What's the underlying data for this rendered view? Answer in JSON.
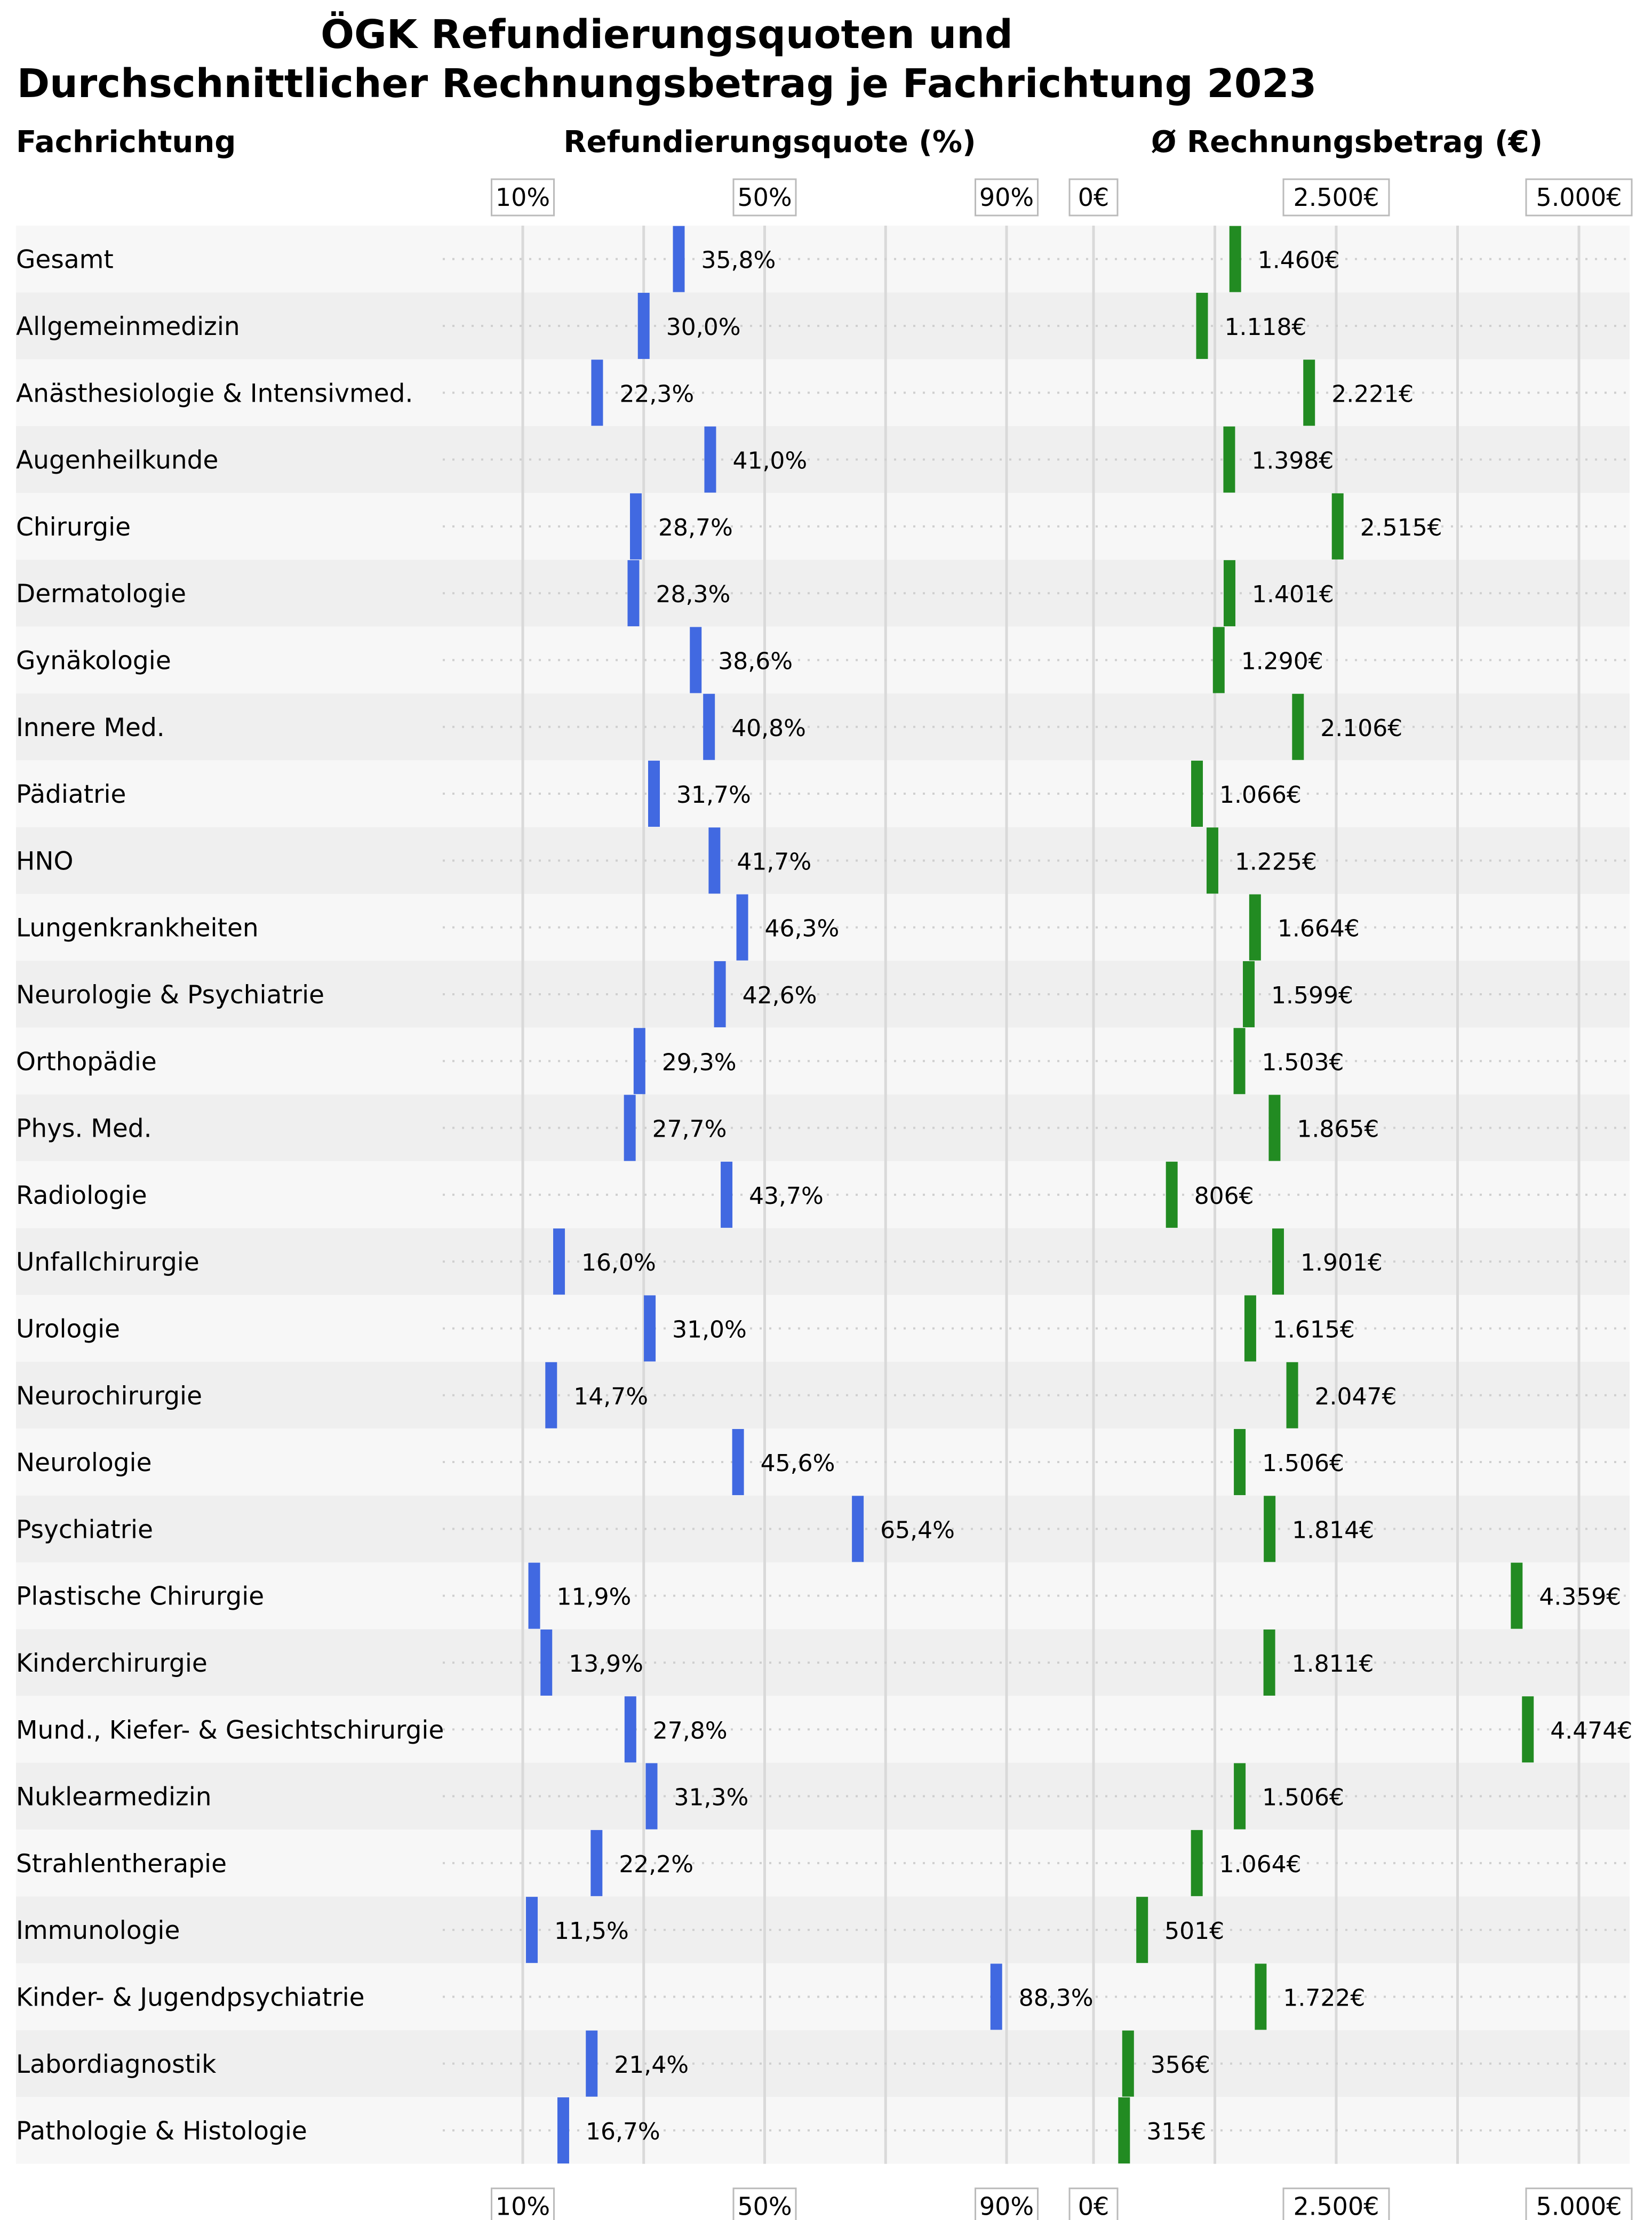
{
  "chart_data": {
    "type": "bar",
    "title_lines": [
      "ÖGK Refundierungsquoten und",
      "Durchschnittlicher Rechnungsbetrag je Fachrichtung 2023"
    ],
    "column_headers": {
      "category": "Fachrichtung",
      "quote": "Refundierungsquote (%)",
      "betrag": "Ø Rechnungsbetrag (€)"
    },
    "quote_axis": {
      "range": [
        10,
        100
      ],
      "ticks": [
        10,
        50,
        90
      ],
      "tick_labels": [
        "10%",
        "50%",
        "90%"
      ],
      "gridlines": [
        10,
        30,
        50,
        70,
        90
      ]
    },
    "betrag_axis": {
      "range": [
        0,
        5000
      ],
      "ticks": [
        0,
        2500,
        5000
      ],
      "tick_labels": [
        "0€",
        "2.500€",
        "5.000€"
      ],
      "gridlines": [
        0,
        1250,
        2500,
        3750,
        5000
      ]
    },
    "colors": {
      "quote": "#4169e1",
      "betrag": "#228b22",
      "band_light": "#f7f7f7",
      "band_dark": "#efefef",
      "grid": "#d9d9d9"
    },
    "categories": [
      "Gesamt",
      "Allgemeinmedizin",
      "Anästhesiologie & Intensivmed.",
      "Augenheilkunde",
      "Chirurgie",
      "Dermatologie",
      "Gynäkologie",
      "Innere Med.",
      "Pädiatrie",
      "HNO",
      "Lungenkrankheiten",
      "Neurologie & Psychiatrie",
      "Orthopädie",
      "Phys. Med.",
      "Radiologie",
      "Unfallchirurgie",
      "Urologie",
      "Neurochirurgie",
      "Neurologie",
      "Psychiatrie",
      "Plastische Chirurgie",
      "Kinderchirurgie",
      "Mund., Kiefer- & Gesichtschirurgie",
      "Nuklearmedizin",
      "Strahlentherapie",
      "Immunologie",
      "Kinder- & Jugendpsychiatrie",
      "Labordiagnostik",
      "Pathologie & Histologie"
    ],
    "series": [
      {
        "key": "quote",
        "values": [
          35.8,
          30.0,
          22.3,
          41.0,
          28.7,
          28.3,
          38.6,
          40.8,
          31.7,
          41.7,
          46.3,
          42.6,
          29.3,
          27.7,
          43.7,
          16.0,
          31.0,
          14.7,
          45.6,
          65.4,
          11.9,
          13.9,
          27.8,
          31.3,
          22.2,
          11.5,
          88.3,
          21.4,
          16.7
        ],
        "labels": [
          "35,8%",
          "30,0%",
          "22,3%",
          "41,0%",
          "28,7%",
          "28,3%",
          "38,6%",
          "40,8%",
          "31,7%",
          "41,7%",
          "46,3%",
          "42,6%",
          "29,3%",
          "27,7%",
          "43,7%",
          "16,0%",
          "31,0%",
          "14,7%",
          "45,6%",
          "65,4%",
          "11,9%",
          "13,9%",
          "27,8%",
          "31,3%",
          "22,2%",
          "11,5%",
          "88,3%",
          "21,4%",
          "16,7%"
        ]
      },
      {
        "key": "betrag",
        "values": [
          1460,
          1118,
          2221,
          1398,
          2515,
          1401,
          1290,
          2106,
          1066,
          1225,
          1664,
          1599,
          1503,
          1865,
          806,
          1901,
          1615,
          2047,
          1506,
          1814,
          4359,
          1811,
          4474,
          1506,
          1064,
          501,
          1722,
          356,
          315
        ],
        "labels": [
          "1.460€",
          "1.118€",
          "2.221€",
          "1.398€",
          "2.515€",
          "1.401€",
          "1.290€",
          "2.106€",
          "1.066€",
          "1.225€",
          "1.664€",
          "1.599€",
          "1.503€",
          "1.865€",
          "806€",
          "1.901€",
          "1.615€",
          "2.047€",
          "1.506€",
          "1.814€",
          "4.359€",
          "1.811€",
          "4.474€",
          "1.506€",
          "1.064€",
          "501€",
          "1.722€",
          "356€",
          "315€"
        ]
      }
    ]
  }
}
